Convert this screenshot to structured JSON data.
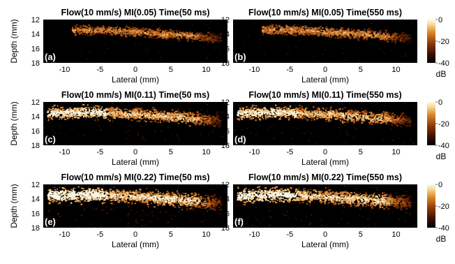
{
  "figure": {
    "y_axis_label": "Depth (mm)",
    "x_axis_label": "Lateral (mm)",
    "x_ticks": [
      "-10",
      "-5",
      "0",
      "5",
      "10"
    ],
    "y_ticks": [
      "12",
      "14",
      "16",
      "18"
    ],
    "colorbar": {
      "ticks": [
        "0",
        "-20",
        "-40"
      ],
      "unit": "dB",
      "colors": [
        "#000000",
        "#3a0f00",
        "#8a3a08",
        "#d9852a",
        "#f6d590",
        "#fff9e8"
      ]
    }
  },
  "chart_data": [
    {
      "type": "heatmap",
      "title": "Flow(10 mm/s) MI(0.05) Time(50 ms)",
      "panel_label": "(a)",
      "intensity": 0.45,
      "xlabel": "Lateral (mm)",
      "ylabel": "Depth (mm)",
      "xlim": [
        -13,
        13
      ],
      "ylim": [
        18,
        12
      ]
    },
    {
      "type": "heatmap",
      "title": "Flow(10 mm/s) MI(0.05) Time(550 ms)",
      "panel_label": "(b)",
      "intensity": 0.5,
      "xlabel": "Lateral (mm)",
      "ylabel": "Depth (mm)",
      "xlim": [
        -13,
        13
      ],
      "ylim": [
        18,
        12
      ]
    },
    {
      "type": "heatmap",
      "title": "Flow(10 mm/s) MI(0.11) Time(50 ms)",
      "panel_label": "(c)",
      "intensity": 0.8,
      "xlabel": "Lateral (mm)",
      "ylabel": "Depth (mm)",
      "xlim": [
        -13,
        13
      ],
      "ylim": [
        18,
        12
      ]
    },
    {
      "type": "heatmap",
      "title": "Flow(10 mm/s) MI(0.11) Time(550 ms)",
      "panel_label": "(d)",
      "intensity": 0.8,
      "xlabel": "Lateral (mm)",
      "ylabel": "Depth (mm)",
      "xlim": [
        -13,
        13
      ],
      "ylim": [
        18,
        12
      ]
    },
    {
      "type": "heatmap",
      "title": "Flow(10 mm/s) MI(0.22) Time(50 ms)",
      "panel_label": "(e)",
      "intensity": 1.0,
      "xlabel": "Lateral (mm)",
      "ylabel": "Depth (mm)",
      "xlim": [
        -13,
        13
      ],
      "ylim": [
        18,
        12
      ]
    },
    {
      "type": "heatmap",
      "title": "Flow(10 mm/s) MI(0.22) Time(550 ms)",
      "panel_label": "(f)",
      "intensity": 0.95,
      "xlabel": "Lateral (mm)",
      "ylabel": "Depth (mm)",
      "xlim": [
        -13,
        13
      ],
      "ylim": [
        18,
        12
      ]
    }
  ]
}
